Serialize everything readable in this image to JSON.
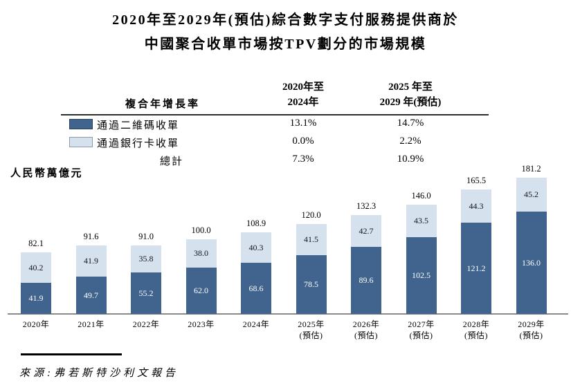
{
  "title": {
    "line1": "2020年至2029年(預估)綜合數字支付服務提供商於",
    "line2": "中國聚合收單市場按TPV劃分的市場規模"
  },
  "unit_label": "人民幣萬億元",
  "source": "來源:弗若斯特沙利文報告",
  "colors": {
    "series_dark": "#41648f",
    "series_light": "#d5e1ec",
    "dark_swatch_border": "#24415f",
    "light_swatch_border": "#8d99a6",
    "axis_line": "#8a8a8a",
    "rule": "#2b2b2b"
  },
  "cagr_table": {
    "header_label": "複合年增長率",
    "period1_header": {
      "line1": "2020年至",
      "line2": "2024年"
    },
    "period2_header": {
      "line1": "2025 年至",
      "line2": "2029 年(預估)"
    },
    "rows": [
      {
        "label": "通過二維碼收單",
        "swatch": "dark",
        "period1": "13.1%",
        "period2": "14.7%"
      },
      {
        "label": "通過銀行卡收單",
        "swatch": "light",
        "period1": "0.0%",
        "period2": "2.2%"
      },
      {
        "label": "總計",
        "swatch": "none",
        "period1": "7.3%",
        "period2": "10.9%"
      }
    ]
  },
  "chart_data": {
    "type": "bar",
    "stacked": true,
    "title": "2020年至2029年(預估)綜合數字支付服務提供商於中國聚合收單市場按TPV劃分的市場規模",
    "ylabel": "人民幣萬億元",
    "legend_position": "top-left-table",
    "grid": false,
    "categories": [
      "2020年",
      "2021年",
      "2022年",
      "2023年",
      "2024年",
      "2025年",
      "2026年",
      "2027年",
      "2028年",
      "2029年"
    ],
    "category_sublabels": [
      "",
      "",
      "",
      "",
      "",
      "(預估)",
      "(預估)",
      "(預估)",
      "(預估)",
      "(預估)"
    ],
    "series": [
      {
        "name": "通過二維碼收單",
        "color": "#41648f",
        "values": [
          41.9,
          49.7,
          55.2,
          62.0,
          68.6,
          78.5,
          89.6,
          102.5,
          121.2,
          136.0
        ]
      },
      {
        "name": "通過銀行卡收單",
        "color": "#d5e1ec",
        "values": [
          40.2,
          41.9,
          35.8,
          38.0,
          40.3,
          41.5,
          42.7,
          43.5,
          44.3,
          45.2
        ]
      }
    ],
    "totals": [
      82.1,
      91.6,
      91.0,
      100.0,
      108.9,
      120.0,
      132.3,
      146.0,
      165.5,
      181.2
    ]
  }
}
